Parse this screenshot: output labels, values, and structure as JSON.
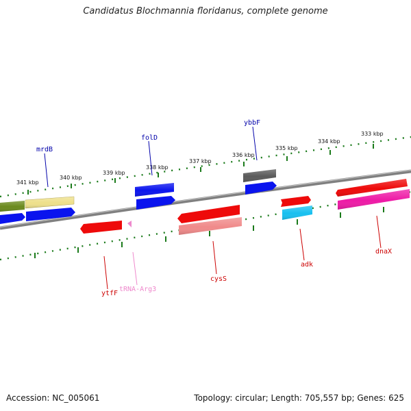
{
  "title": "Candidatus Blochmannia floridanus, complete genome",
  "footer": {
    "accession": "Accession: NC_005061",
    "summary": "Topology: circular; Length: 705,557 bp; Genes: 625"
  },
  "scale_labels": [
    "341 kbp",
    "340 kbp",
    "339 kbp",
    "338 kbp",
    "337 kbp",
    "336 kbp",
    "335 kbp",
    "334 kbp",
    "333 kbp"
  ],
  "gene_labels": [
    {
      "name": "mrdB",
      "color": "#0000aa"
    },
    {
      "name": "folD",
      "color": "#0000aa"
    },
    {
      "name": "ybbF",
      "color": "#0000aa"
    },
    {
      "name": "ytfF",
      "color": "#cc0000"
    },
    {
      "name": "tRNA-Arg3",
      "color": "#ee88cc"
    },
    {
      "name": "cysS",
      "color": "#cc0000"
    },
    {
      "name": "adk",
      "color": "#cc0000"
    },
    {
      "name": "dnaX",
      "color": "#cc0000"
    }
  ],
  "colors": {
    "backbone": "#808080",
    "ticks": "#1a7a1a",
    "blue": "#0a14ee",
    "red": "#ee0a0a",
    "olive": "#6b8a1e",
    "khaki": "#eee08a",
    "gray": "#5a5a5a",
    "salmon": "#f08a8a",
    "cyan": "#18c0f0",
    "magenta": "#ee1aa6",
    "pink": "#ee88cc"
  }
}
